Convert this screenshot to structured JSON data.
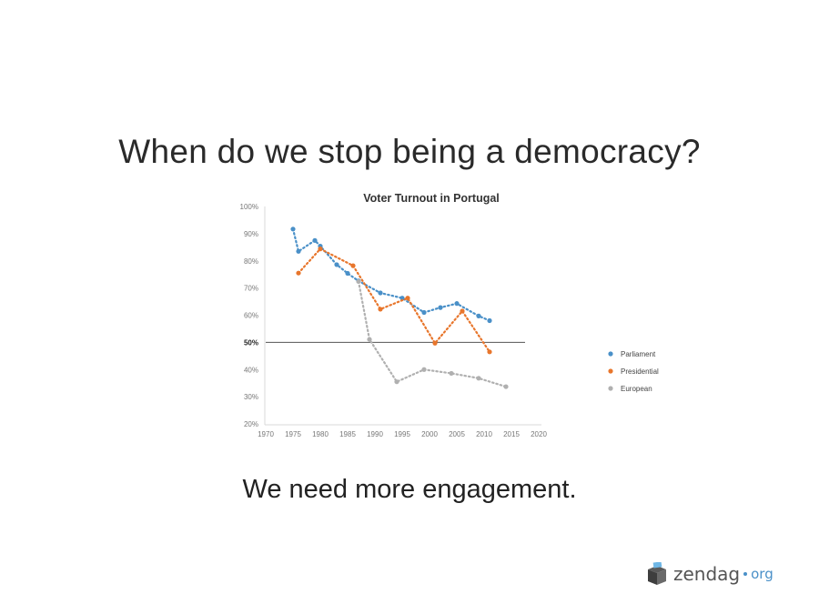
{
  "slide": {
    "headline": "When do we stop being a democracy?",
    "subline": "We need more engagement."
  },
  "logo": {
    "name": "zendag",
    "suffix": "org",
    "icon": "ballot-box-icon",
    "accent": "#4a90c8"
  },
  "chart_data": {
    "type": "line",
    "title": "Voter Turnout in Portugal",
    "xlabel": "",
    "ylabel": "",
    "xlim": [
      1970,
      2020
    ],
    "ylim": [
      20,
      100
    ],
    "x_ticks": [
      "1970",
      "1975",
      "1980",
      "1985",
      "1990",
      "1995",
      "2000",
      "2005",
      "2010",
      "2015",
      "2020"
    ],
    "y_ticks": [
      "20%",
      "30%",
      "40%",
      "50%",
      "60%",
      "70%",
      "80%",
      "90%",
      "100%"
    ],
    "reference_line": {
      "value": 50,
      "label": "50%"
    },
    "legend_position": "right",
    "line_style": "dotted",
    "grid": false,
    "series": [
      {
        "name": "Parliament",
        "color": "#4a90c8",
        "points": [
          [
            1975,
            91.7
          ],
          [
            1976,
            83.5
          ],
          [
            1979,
            87.5
          ],
          [
            1980,
            85.4
          ],
          [
            1983,
            78.6
          ],
          [
            1985,
            75.4
          ],
          [
            1987,
            72.6
          ],
          [
            1991,
            68.2
          ],
          [
            1995,
            66.3
          ],
          [
            1999,
            61.0
          ],
          [
            2002,
            62.8
          ],
          [
            2005,
            64.3
          ],
          [
            2009,
            59.7
          ],
          [
            2011,
            58.0
          ]
        ]
      },
      {
        "name": "Presidential",
        "color": "#e8762c",
        "points": [
          [
            1976,
            75.5
          ],
          [
            1980,
            84.4
          ],
          [
            1986,
            78.2
          ],
          [
            1991,
            62.2
          ],
          [
            1996,
            66.3
          ],
          [
            2001,
            49.7
          ],
          [
            2006,
            61.5
          ],
          [
            2011,
            46.5
          ]
        ]
      },
      {
        "name": "European",
        "color": "#b0b0b0",
        "points": [
          [
            1987,
            72.4
          ],
          [
            1989,
            51.1
          ],
          [
            1994,
            35.5
          ],
          [
            1999,
            40.0
          ],
          [
            2004,
            38.6
          ],
          [
            2009,
            36.8
          ],
          [
            2014,
            33.7
          ]
        ]
      }
    ]
  }
}
